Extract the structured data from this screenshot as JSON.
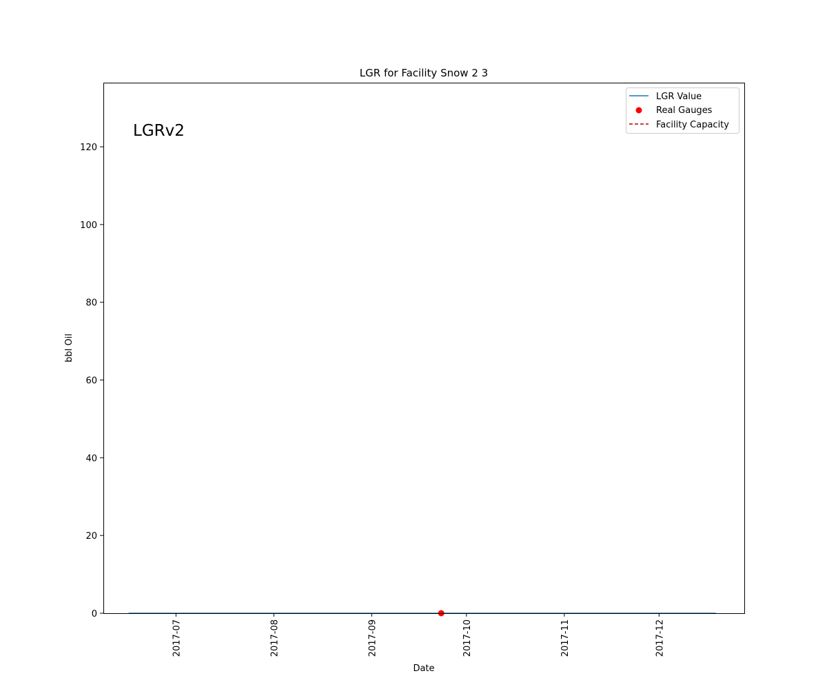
{
  "chart_data": {
    "type": "line",
    "title": "LGR for Facility Snow 2 3",
    "xlabel": "Date",
    "ylabel": "bbl Oil",
    "annotation": "LGRv2",
    "x_axis_kind": "date",
    "xlim": [
      "2017-06-08",
      "2017-12-28"
    ],
    "ylim": [
      0,
      136.5
    ],
    "y_ticks": [
      0,
      20,
      40,
      60,
      80,
      100,
      120
    ],
    "x_ticks": [
      "2017-07",
      "2017-08",
      "2017-09",
      "2017-10",
      "2017-11",
      "2017-12"
    ],
    "x_tick_dates": [
      "2017-07-01",
      "2017-08-01",
      "2017-09-01",
      "2017-10-01",
      "2017-11-01",
      "2017-12-01"
    ],
    "grid": false,
    "legend_position": "top-right",
    "series": [
      {
        "name": "LGR Value",
        "kind": "line",
        "color": "#1f77b4",
        "x": [
          "2017-06-16",
          "2017-12-19"
        ],
        "y": [
          0,
          0
        ]
      },
      {
        "name": "Real Gauges",
        "kind": "scatter",
        "color": "#ff0000",
        "x": [
          "2017-09-23"
        ],
        "y": [
          0
        ]
      },
      {
        "name": "Facility Capacity",
        "kind": "dashed-line",
        "color": "#b00000",
        "x": [],
        "y": []
      }
    ]
  }
}
